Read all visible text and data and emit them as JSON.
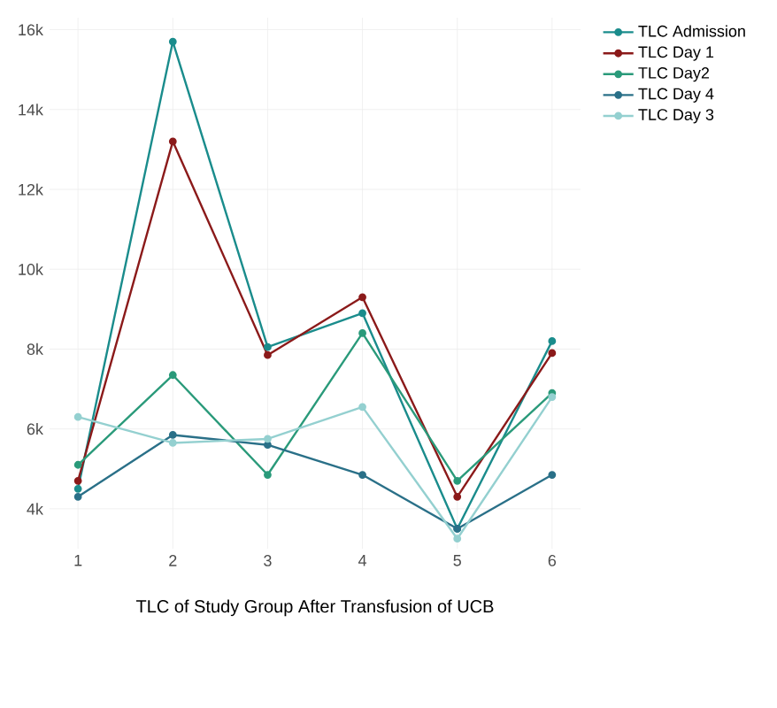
{
  "chart_data": {
    "type": "line",
    "xlabel": "TLC of Study Group After Transfusion of UCB",
    "categories": [
      "1",
      "2",
      "3",
      "4",
      "5",
      "6"
    ],
    "series": [
      {
        "name": "TLC Admission",
        "color": "#1a8c8c",
        "values": [
          4500,
          15700,
          8050,
          8900,
          3500,
          8200
        ]
      },
      {
        "name": "TLC Day 1",
        "color": "#8b1a1a",
        "values": [
          4700,
          13200,
          7850,
          9300,
          4300,
          7900
        ]
      },
      {
        "name": "TLC  Day2",
        "color": "#2a9a7a",
        "values": [
          5100,
          7350,
          4850,
          8400,
          4700,
          6900
        ]
      },
      {
        "name": "TLC Day 4",
        "color": "#2a7088",
        "values": [
          4300,
          5850,
          5600,
          4850,
          3500,
          4850
        ]
      },
      {
        "name": "TLC Day 3",
        "color": "#94d0d0",
        "values": [
          6300,
          5650,
          5750,
          6550,
          3250,
          6800
        ]
      }
    ],
    "ylim": [
      3000,
      16300
    ],
    "yticks": [
      {
        "value": 4000,
        "label": "4k"
      },
      {
        "value": 6000,
        "label": "6k"
      },
      {
        "value": 8000,
        "label": "8k"
      },
      {
        "value": 10000,
        "label": "10k"
      },
      {
        "value": 12000,
        "label": "12k"
      },
      {
        "value": 14000,
        "label": "14k"
      },
      {
        "value": 16000,
        "label": "16k"
      }
    ],
    "grid": true,
    "legend": "top right",
    "marker": "circle",
    "line_style": "solid"
  }
}
